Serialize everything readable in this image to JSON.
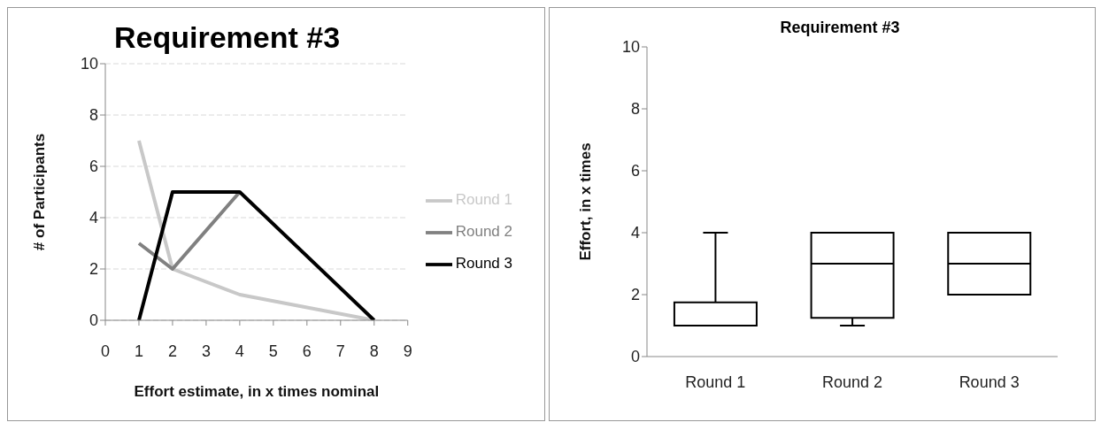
{
  "chart_data": [
    {
      "type": "line",
      "title": "Requirement #3",
      "xlabel": "Effort estimate, in x times nominal",
      "ylabel": "# of Participants",
      "series": [
        {
          "name": "Round 1",
          "color": "#c8c8c8",
          "x": [
            1,
            2,
            4,
            8
          ],
          "values": [
            7,
            2,
            1,
            0
          ]
        },
        {
          "name": "Round 2",
          "color": "#808080",
          "x": [
            1,
            2,
            4
          ],
          "values": [
            3,
            2,
            5
          ]
        },
        {
          "name": "Round 3",
          "color": "#000000",
          "x": [
            1,
            2,
            4,
            8
          ],
          "values": [
            0,
            5,
            5,
            0
          ]
        }
      ],
      "xlim": [
        0,
        9
      ],
      "xticks": [
        0,
        1,
        2,
        3,
        4,
        5,
        6,
        7,
        8,
        9
      ],
      "ylim": [
        0,
        10
      ],
      "yticks": [
        0,
        2,
        4,
        6,
        8,
        10
      ],
      "grid": "y",
      "legend": "right",
      "marker": "none",
      "line_style": "solid"
    },
    {
      "type": "box",
      "title": "Requirement #3",
      "ylabel": "Effort, in x times",
      "categories": [
        "Round 1",
        "Round 2",
        "Round 3"
      ],
      "color": "#000000",
      "boxes": [
        {
          "low": 1,
          "q1": 1,
          "median": 1,
          "q3": 1.75,
          "high": 4
        },
        {
          "low": 1,
          "q1": 1.25,
          "median": 3,
          "q3": 4,
          "high": 4
        },
        {
          "low": 2,
          "q1": 2,
          "median": 3,
          "q3": 4,
          "high": 4
        }
      ],
      "ylim": [
        0,
        10
      ],
      "yticks": [
        0,
        2,
        4,
        6,
        8,
        10
      ],
      "grid": false
    }
  ]
}
